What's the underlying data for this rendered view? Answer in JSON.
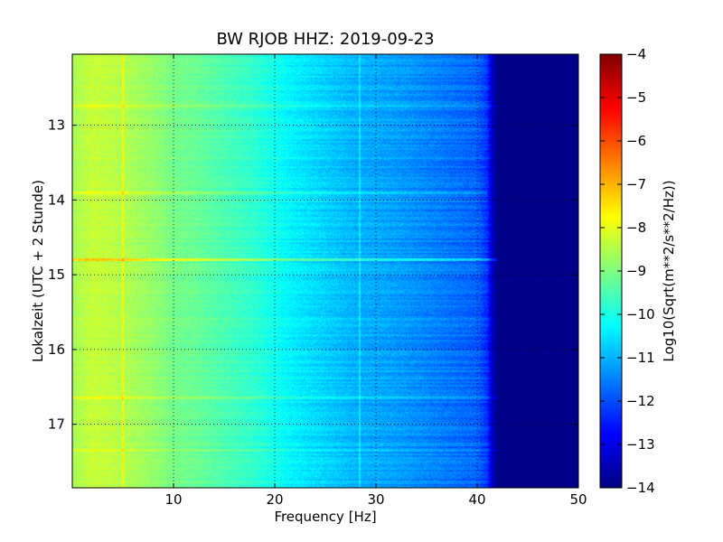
{
  "chart_data": {
    "type": "heatmap",
    "title": "BW RJOB HHZ: 2019-09-23",
    "xlabel": "Frequency [Hz]",
    "ylabel": "Lokalzeit (UTC + 2 Stunde)",
    "xlim": [
      0,
      50
    ],
    "ylim": [
      12.05,
      17.85
    ],
    "y_inverted": true,
    "x_ticks": [
      10,
      20,
      30,
      40,
      50
    ],
    "y_ticks": [
      13,
      14,
      15,
      16,
      17
    ],
    "grid": true,
    "colorbar": {
      "label": "Log10(Sqrt(m**2/s**2/Hz))",
      "range": [
        -14,
        -4
      ],
      "ticks": [
        -4,
        -5,
        -6,
        -7,
        -8,
        -9,
        -10,
        -11,
        -12,
        -13,
        -14
      ],
      "colormap": "jet"
    },
    "frequency_profile": {
      "frequencies_hz": [
        0,
        2,
        4,
        6,
        8,
        10,
        12,
        14,
        16,
        18,
        20,
        22,
        24,
        26,
        28,
        30,
        32,
        34,
        36,
        38,
        40,
        41,
        41.5,
        42,
        50
      ],
      "log10_amplitude": [
        -8.6,
        -8.3,
        -8.4,
        -8.6,
        -8.8,
        -9.1,
        -9.2,
        -9.4,
        -9.6,
        -9.8,
        -10.1,
        -10.4,
        -10.6,
        -10.8,
        -11.0,
        -11.1,
        -11.2,
        -11.35,
        -11.5,
        -11.65,
        -11.8,
        -12.3,
        -13.4,
        -13.9,
        -13.9
      ]
    },
    "horizontal_features": [
      {
        "time": 14.8,
        "fmax": 42,
        "delta": 1.2
      },
      {
        "time": 13.9,
        "fmax": 41,
        "delta": 0.5
      },
      {
        "time": 16.65,
        "fmax": 42,
        "delta": 0.5
      },
      {
        "time": 17.35,
        "fmax": 42,
        "delta": 0.4
      },
      {
        "time": 12.75,
        "fmax": 42,
        "delta": 0.4
      }
    ],
    "vertical_features": [
      {
        "freq": 5.0,
        "delta": 0.8
      },
      {
        "freq": 28.4,
        "delta": 0.5
      }
    ]
  }
}
